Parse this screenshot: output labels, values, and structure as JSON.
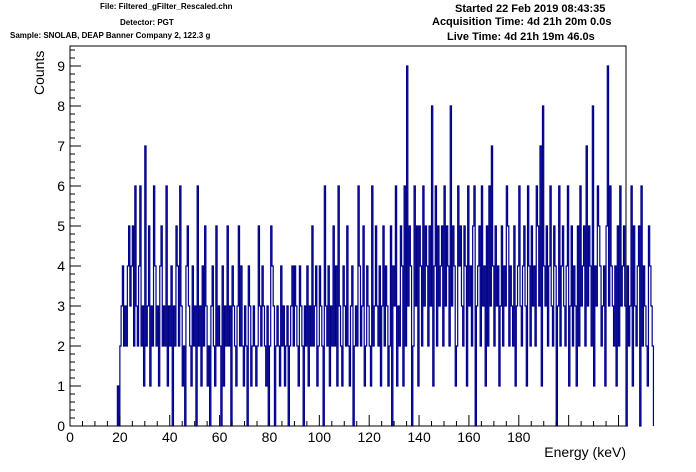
{
  "header": {
    "file": "File: Filtered_gFilter_Rescaled.chn",
    "detector": "Detector: PGT",
    "sample": "Sample: SNOLAB, DEAP Banner Company 2, 122.3 g",
    "started": "Started 22 Feb 2019 08:43:35",
    "acquisition_time": "Acquisition Time: 4d 21h 20m 0.0s",
    "live_time": "Live Time: 4d 21h 19m 46.0s"
  },
  "chart_data": {
    "type": "histogram",
    "xlabel": "Energy (keV)",
    "ylabel": "Counts",
    "xlim": [
      0,
      223
    ],
    "ylim": [
      0,
      9.5
    ],
    "x_ticks": [
      "0",
      "20",
      "40",
      "60",
      "80",
      "100",
      "120",
      "140",
      "160",
      "180"
    ],
    "y_ticks": [
      "0",
      "1",
      "2",
      "3",
      "4",
      "5",
      "6",
      "7",
      "8",
      "9"
    ],
    "bin_width_kev": 0.5,
    "line_color": "#00008b",
    "bins_start_kev": 19,
    "counts": [
      1,
      0,
      2,
      3,
      4,
      2,
      3,
      2,
      4,
      5,
      3,
      4,
      5,
      2,
      6,
      3,
      2,
      4,
      6,
      2,
      3,
      1,
      7,
      2,
      3,
      5,
      1,
      3,
      2,
      6,
      4,
      2,
      3,
      1,
      4,
      5,
      2,
      3,
      2,
      6,
      1,
      3,
      2,
      4,
      0,
      3,
      2,
      5,
      4,
      2,
      6,
      3,
      1,
      2,
      0,
      4,
      5,
      3,
      2,
      1,
      4,
      2,
      3,
      0,
      6,
      2,
      3,
      1,
      4,
      2,
      5,
      3,
      1,
      2,
      0,
      3,
      4,
      2,
      1,
      5,
      2,
      3,
      2,
      0,
      4,
      1,
      3,
      2,
      5,
      2,
      3,
      0,
      4,
      3,
      2,
      1,
      3,
      5,
      2,
      4,
      2,
      1,
      3,
      2,
      0,
      4,
      3,
      1,
      2,
      3,
      2,
      1,
      2,
      5,
      3,
      2,
      4,
      3,
      2,
      1,
      3,
      0,
      2,
      5,
      4,
      3,
      0,
      2,
      3,
      2,
      1,
      4,
      2,
      3,
      1,
      2,
      3,
      0,
      2,
      3,
      4,
      2,
      4,
      3,
      2,
      1,
      4,
      3,
      2,
      0,
      3,
      2,
      4,
      1,
      3,
      2,
      5,
      2,
      3,
      4,
      1,
      2,
      4,
      3,
      2,
      0,
      6,
      3,
      2,
      4,
      1,
      3,
      2,
      5,
      2,
      4,
      1,
      6,
      3,
      2,
      1,
      4,
      3,
      2,
      5,
      2,
      1,
      3,
      4,
      0,
      2,
      3,
      2,
      6,
      4,
      2,
      3,
      5,
      1,
      2,
      4,
      3,
      2,
      1,
      6,
      2,
      3,
      5,
      3,
      2,
      4,
      1,
      3,
      5,
      2,
      4,
      3,
      1,
      2,
      5,
      0,
      4,
      3,
      6,
      1,
      3,
      2,
      5,
      4,
      1,
      6,
      2,
      9,
      3,
      5,
      4,
      0,
      2,
      6,
      3,
      5,
      1,
      5,
      4,
      2,
      6,
      3,
      5,
      4,
      2,
      5,
      3,
      8,
      1,
      4,
      6,
      2,
      5,
      3,
      4,
      5,
      2,
      6,
      3,
      5,
      4,
      2,
      8,
      3,
      5,
      4,
      1,
      2,
      6,
      4,
      5,
      3,
      2,
      5,
      4,
      1,
      6,
      3,
      4,
      2,
      5,
      6,
      0,
      3,
      4,
      5,
      2,
      6,
      3,
      4,
      1,
      5,
      2,
      6,
      3,
      7,
      4,
      2,
      5,
      3,
      4,
      1,
      3,
      5,
      2,
      4,
      3,
      6,
      5,
      2,
      4,
      3,
      2,
      5,
      1,
      3,
      4,
      6,
      3,
      2,
      4,
      5,
      3,
      1,
      6,
      4,
      2,
      5,
      3,
      4,
      2,
      6,
      5,
      3,
      7,
      1,
      8,
      4,
      3,
      5,
      2,
      4,
      6,
      3,
      2,
      5,
      4,
      0,
      3,
      6,
      2,
      4,
      5,
      3,
      2,
      4,
      6,
      1,
      3,
      5,
      2,
      4,
      3,
      1,
      5,
      2,
      6,
      3,
      4,
      5,
      2,
      7,
      3,
      5,
      4,
      2,
      8,
      1,
      4,
      3,
      6,
      5,
      4,
      2,
      3,
      4,
      1,
      5,
      9,
      3,
      6,
      4,
      3,
      2,
      4,
      1,
      5,
      2,
      6,
      3,
      4,
      5,
      3,
      0,
      4,
      2,
      3,
      6,
      1,
      5,
      3,
      2,
      4,
      5,
      0,
      6,
      2,
      4,
      3,
      2,
      1,
      5,
      4,
      3,
      2
    ]
  }
}
